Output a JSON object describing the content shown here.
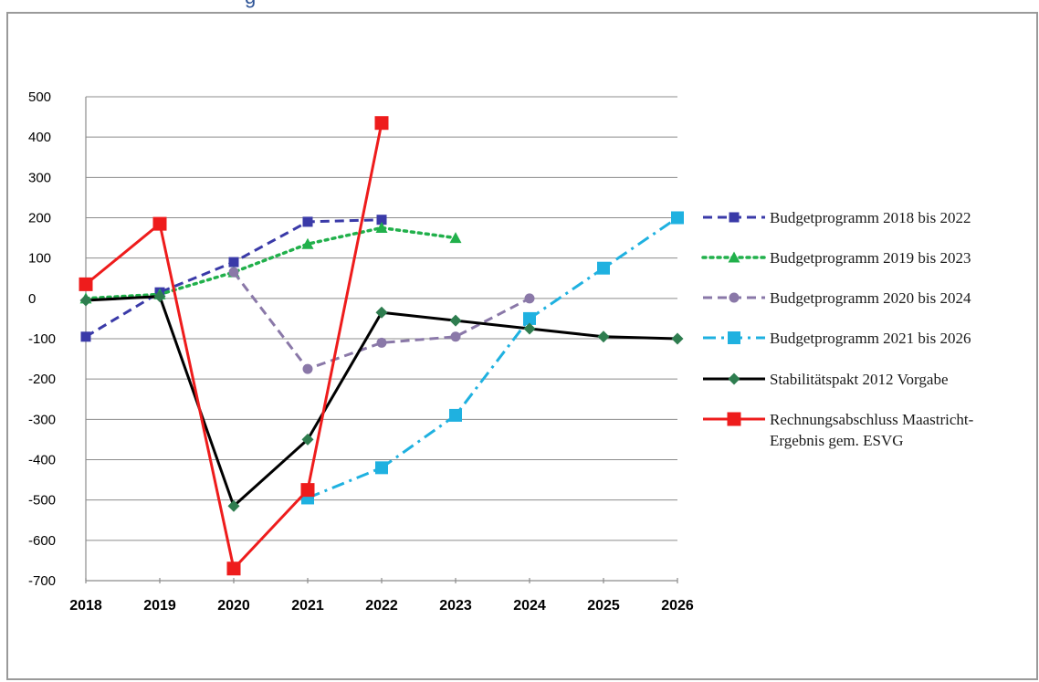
{
  "title_fragment": "g",
  "chart_data": {
    "type": "line",
    "title": "",
    "xlabel": "",
    "ylabel": "",
    "x": [
      "2018",
      "2019",
      "2020",
      "2021",
      "2022",
      "2023",
      "2024",
      "2025",
      "2026"
    ],
    "ylim": [
      -700,
      500
    ],
    "yticks": [
      500,
      400,
      300,
      200,
      100,
      0,
      -100,
      -200,
      -300,
      -400,
      -500,
      -600,
      -700
    ],
    "ytick_labels": [
      "500",
      "400",
      "300",
      "200",
      "100",
      "0",
      "-100",
      "-200",
      "-300",
      "-400",
      "-500",
      "-600",
      "-700"
    ],
    "grid": true,
    "legend_position": "right",
    "series": [
      {
        "name": "Budgetprogramm 2018 bis 2022",
        "color": "#3a3aa8",
        "dash": "dash",
        "marker": "square",
        "values": [
          -95,
          15,
          90,
          190,
          195,
          null,
          null,
          null,
          null
        ]
      },
      {
        "name": "Budgetprogramm 2019 bis 2023",
        "color": "#21b04b",
        "dash": "dot",
        "marker": "triangle",
        "values": [
          0,
          10,
          65,
          135,
          175,
          150,
          null,
          null,
          null
        ]
      },
      {
        "name": "Budgetprogramm 2020 bis 2024",
        "color": "#8a78a8",
        "dash": "dash",
        "marker": "circle",
        "values": [
          null,
          null,
          65,
          -175,
          -110,
          -95,
          0,
          null,
          null
        ]
      },
      {
        "name": "Budgetprogramm 2021 bis 2026",
        "color": "#1fb1e0",
        "dash": "dashdot",
        "marker": "square",
        "values": [
          null,
          null,
          null,
          -495,
          -420,
          -290,
          -50,
          75,
          200
        ]
      },
      {
        "name": "Stabilitätspakt 2012 Vorgabe",
        "color": "#000000",
        "dash": "solid",
        "marker": "diamond",
        "marker_color": "#2e7d4f",
        "values": [
          -5,
          5,
          -515,
          -350,
          -35,
          -55,
          -75,
          -95,
          -100
        ]
      },
      {
        "name": "Rechnungsabschluss Maastricht-Ergebnis gem. ESVG",
        "label_lines": [
          "Rechnungsabschluss Maastricht-",
          "Ergebnis gem. ESVG"
        ],
        "color": "#ee1c1c",
        "dash": "solid",
        "marker": "square",
        "values": [
          35,
          185,
          -670,
          -475,
          435,
          null,
          null,
          null,
          null
        ]
      }
    ]
  }
}
